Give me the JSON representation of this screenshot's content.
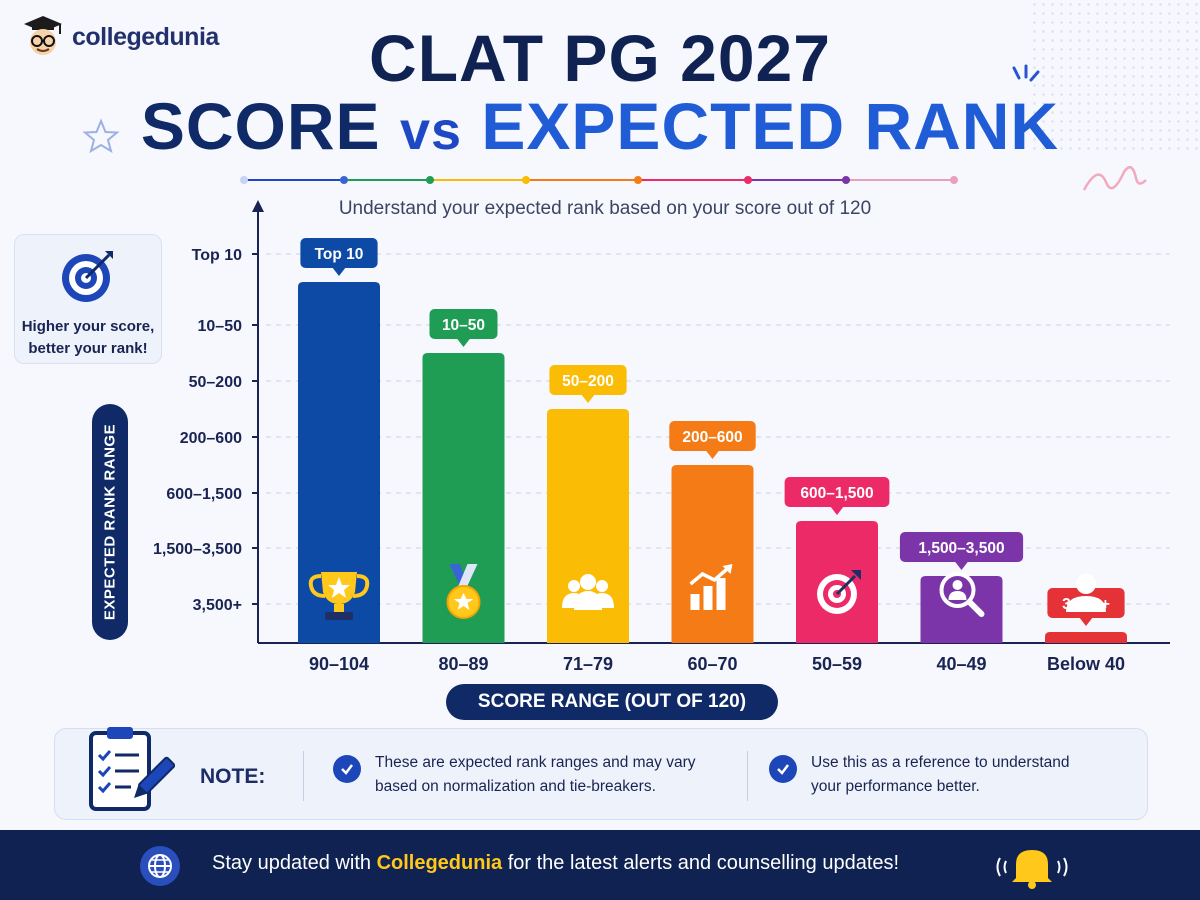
{
  "brand": {
    "name": "collegedunia"
  },
  "header": {
    "title_line1": "CLAT PG 2027",
    "title_line2_a": "SCORE",
    "title_line2_b": "vs",
    "title_line2_c": "EXPECTED RANK",
    "subtitle": "Understand your expected rank based on your score out of 120"
  },
  "hint": {
    "text_line1": "Higher your score,",
    "text_line2": "better your rank!"
  },
  "chart_data": {
    "type": "bar",
    "xlabel": "SCORE RANGE (OUT OF 120)",
    "ylabel": "EXPECTED RANK RANGE",
    "y_ticks": [
      "Top 10",
      "10–50",
      "50–200",
      "200–600",
      "600–1,500",
      "1,500–3,500",
      "3,500+"
    ],
    "categories": [
      "90–104",
      "80–89",
      "71–79",
      "60–70",
      "50–59",
      "40–49",
      "Below 40"
    ],
    "values": [
      "Top 10",
      "10–50",
      "50–200",
      "200–600",
      "600–1,500",
      "1,500–3,500",
      "3,500+"
    ],
    "colors": [
      "#0d4aa6",
      "#1f9d55",
      "#fbbc05",
      "#f47b16",
      "#ec2a68",
      "#7b35a8",
      "#e53237"
    ],
    "icons": [
      "trophy-icon",
      "medal-icon",
      "group-icon",
      "growth-chart-icon",
      "target-icon",
      "search-user-icon",
      "user-icon"
    ]
  },
  "note": {
    "label": "NOTE:",
    "item1_line1": "These are expected rank ranges and may vary",
    "item1_line2": "based on normalization and tie-breakers.",
    "item2_line1": "Use this as a reference to understand",
    "item2_line2": "your performance better."
  },
  "footer": {
    "text_before": "Stay updated with ",
    "brand": "Collegedunia",
    "text_after": " for the latest alerts and counselling updates!"
  }
}
